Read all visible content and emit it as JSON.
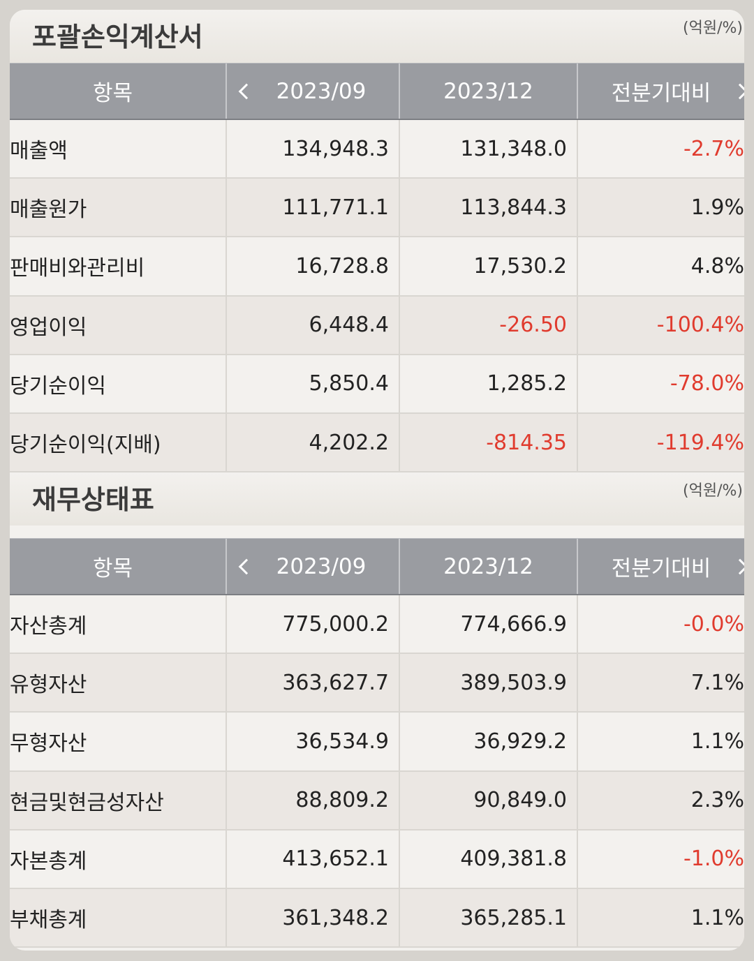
{
  "sections": [
    {
      "title": "포괄손익계산서",
      "unit": "(억원/%)",
      "headers": [
        "항목",
        "2023/09",
        "2023/12",
        "전분기대비"
      ],
      "rows": [
        {
          "item": "매출액",
          "v1": "134,948.3",
          "v2": "131,348.0",
          "chg": "-2.7%"
        },
        {
          "item": "매출원가",
          "v1": "111,771.1",
          "v2": "113,844.3",
          "chg": "1.9%"
        },
        {
          "item": "판매비와관리비",
          "v1": "16,728.8",
          "v2": "17,530.2",
          "chg": "4.8%"
        },
        {
          "item": "영업이익",
          "v1": "6,448.4",
          "v2": "-26.50",
          "chg": "-100.4%"
        },
        {
          "item": "당기순이익",
          "v1": "5,850.4",
          "v2": "1,285.2",
          "chg": "-78.0%"
        },
        {
          "item": "당기순이익(지배)",
          "v1": "4,202.2",
          "v2": "-814.35",
          "chg": "-119.4%"
        }
      ]
    },
    {
      "title": "재무상태표",
      "unit": "(억원/%)",
      "headers": [
        "항목",
        "2023/09",
        "2023/12",
        "전분기대비"
      ],
      "rows": [
        {
          "item": "자산총계",
          "v1": "775,000.2",
          "v2": "774,666.9",
          "chg": "-0.0%"
        },
        {
          "item": "유형자산",
          "v1": "363,627.7",
          "v2": "389,503.9",
          "chg": "7.1%"
        },
        {
          "item": "무형자산",
          "v1": "36,534.9",
          "v2": "36,929.2",
          "chg": "1.1%"
        },
        {
          "item": "현금및현금성자산",
          "v1": "88,809.2",
          "v2": "90,849.0",
          "chg": "2.3%"
        },
        {
          "item": "자본총계",
          "v1": "413,652.1",
          "v2": "409,381.8",
          "chg": "-1.0%"
        },
        {
          "item": "부채총계",
          "v1": "361,348.2",
          "v2": "365,285.1",
          "chg": "1.1%"
        }
      ]
    }
  ],
  "colors": {
    "negative": "#e03b2e",
    "header_bg": "#9a9ca1"
  }
}
